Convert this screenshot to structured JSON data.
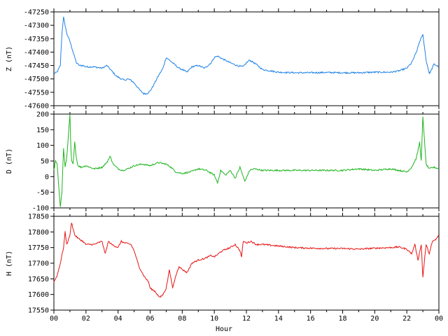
{
  "chart_data": [
    {
      "type": "line",
      "ylabel": "Z (nT)",
      "ylim": [
        -47600,
        -47250
      ],
      "yticks": [
        -47600,
        -47550,
        -47500,
        -47450,
        -47400,
        -47350,
        -47300,
        -47250
      ],
      "xlim": [
        0,
        24
      ],
      "color": "#1e82e6",
      "series": [
        {
          "x": [
            0,
            0.2,
            0.4,
            0.5,
            0.6,
            0.7,
            0.8,
            1.0,
            1.2,
            1.4,
            1.6,
            1.8,
            2.0,
            2.5,
            3.0,
            3.3,
            3.6,
            3.9,
            4.2,
            4.4,
            4.6,
            4.8,
            5.0,
            5.2,
            5.4,
            5.6,
            5.8,
            6.0,
            6.2,
            6.5,
            6.8,
            7.0,
            7.2,
            7.5,
            7.8,
            8.0,
            8.3,
            8.6,
            9.0,
            9.4,
            9.8,
            10.0,
            10.2,
            10.5,
            11.0,
            11.4,
            11.8,
            12.0,
            12.2,
            12.6,
            13.0,
            13.5,
            14.0,
            15,
            16,
            17,
            18,
            19,
            20,
            21,
            21.5,
            22.0,
            22.3,
            22.6,
            22.8,
            23.0,
            23.1,
            23.2,
            23.4,
            23.5,
            23.7,
            24
          ],
          "y": [
            -47480,
            -47475,
            -47450,
            -47330,
            -47270,
            -47300,
            -47330,
            -47360,
            -47400,
            -47440,
            -47450,
            -47450,
            -47455,
            -47455,
            -47460,
            -47450,
            -47470,
            -47490,
            -47500,
            -47505,
            -47500,
            -47505,
            -47515,
            -47530,
            -47545,
            -47555,
            -47555,
            -47545,
            -47525,
            -47490,
            -47460,
            -47420,
            -47430,
            -47445,
            -47460,
            -47465,
            -47475,
            -47455,
            -47450,
            -47460,
            -47440,
            -47420,
            -47415,
            -47425,
            -47440,
            -47450,
            -47455,
            -47440,
            -47430,
            -47445,
            -47465,
            -47470,
            -47475,
            -47477,
            -47477,
            -47476,
            -47477,
            -47477,
            -47475,
            -47475,
            -47470,
            -47460,
            -47440,
            -47400,
            -47360,
            -47335,
            -47380,
            -47430,
            -47480,
            -47470,
            -47445,
            -47455
          ]
        }
      ]
    },
    {
      "type": "line",
      "ylabel": "D (nT)",
      "ylim": [
        -100,
        200
      ],
      "yticks": [
        -100,
        -50,
        0,
        50,
        100,
        150,
        200
      ],
      "xlim": [
        0,
        24
      ],
      "color": "#1eb41e",
      "series": [
        {
          "x": [
            0,
            0.1,
            0.2,
            0.3,
            0.4,
            0.5,
            0.6,
            0.7,
            0.8,
            0.9,
            1.0,
            1.05,
            1.1,
            1.2,
            1.3,
            1.4,
            1.5,
            1.7,
            2.0,
            2.5,
            3.0,
            3.3,
            3.5,
            3.7,
            4.0,
            4.3,
            4.6,
            5.0,
            5.5,
            6.0,
            6.5,
            7.0,
            7.3,
            7.6,
            8.0,
            8.5,
            9.0,
            9.5,
            10.0,
            10.2,
            10.4,
            10.7,
            11.0,
            11.3,
            11.6,
            11.9,
            12.2,
            12.5,
            13,
            14,
            15,
            16,
            17,
            18,
            19,
            20,
            21,
            21.5,
            22.0,
            22.3,
            22.6,
            22.8,
            22.9,
            23.0,
            23.1,
            23.2,
            23.4,
            23.7,
            24
          ],
          "y": [
            20,
            50,
            40,
            -30,
            -95,
            -50,
            90,
            30,
            60,
            130,
            200,
            100,
            50,
            40,
            110,
            60,
            35,
            30,
            35,
            25,
            30,
            45,
            65,
            40,
            25,
            20,
            25,
            35,
            40,
            35,
            45,
            40,
            30,
            15,
            10,
            15,
            25,
            20,
            5,
            -20,
            20,
            5,
            20,
            -5,
            30,
            -15,
            20,
            25,
            20,
            20,
            20,
            20,
            20,
            20,
            25,
            20,
            25,
            20,
            15,
            30,
            60,
            110,
            50,
            190,
            120,
            40,
            25,
            30,
            25
          ]
        }
      ]
    },
    {
      "type": "line",
      "ylabel": "H (nT)",
      "ylim": [
        17550,
        17850
      ],
      "yticks": [
        17550,
        17600,
        17650,
        17700,
        17750,
        17800,
        17850
      ],
      "xlim": [
        0,
        24
      ],
      "xticks": [
        "00",
        "02",
        "04",
        "06",
        "08",
        "10",
        "12",
        "14",
        "16",
        "18",
        "20",
        "22",
        "00"
      ],
      "xlabel": "Hour",
      "color": "#e61414",
      "series": [
        {
          "x": [
            0,
            0.2,
            0.4,
            0.6,
            0.7,
            0.8,
            1.0,
            1.1,
            1.2,
            1.3,
            1.5,
            1.8,
            2.0,
            2.5,
            3.0,
            3.2,
            3.4,
            3.6,
            4.0,
            4.2,
            4.4,
            4.8,
            5.0,
            5.3,
            5.6,
            5.9,
            6.0,
            6.3,
            6.6,
            6.8,
            7.0,
            7.2,
            7.4,
            7.6,
            7.8,
            8.0,
            8.3,
            8.6,
            9.0,
            9.4,
            9.8,
            10.0,
            10.5,
            11.0,
            11.3,
            11.6,
            11.7,
            11.8,
            12.0,
            12.3,
            12.6,
            13,
            14,
            15,
            16,
            17,
            18,
            19,
            20,
            21,
            21.5,
            22.0,
            22.3,
            22.5,
            22.7,
            22.9,
            23.0,
            23.2,
            23.4,
            23.6,
            23.8,
            24
          ],
          "y": [
            17640,
            17660,
            17700,
            17750,
            17800,
            17760,
            17790,
            17830,
            17810,
            17790,
            17780,
            17770,
            17760,
            17760,
            17770,
            17730,
            17770,
            17760,
            17750,
            17770,
            17765,
            17760,
            17740,
            17690,
            17660,
            17640,
            17620,
            17610,
            17590,
            17600,
            17620,
            17680,
            17620,
            17660,
            17690,
            17680,
            17670,
            17700,
            17710,
            17715,
            17725,
            17720,
            17740,
            17750,
            17760,
            17740,
            17720,
            17770,
            17765,
            17770,
            17760,
            17760,
            17755,
            17750,
            17748,
            17747,
            17747,
            17745,
            17748,
            17750,
            17752,
            17745,
            17730,
            17760,
            17710,
            17760,
            17655,
            17760,
            17730,
            17770,
            17775,
            17790
          ]
        }
      ]
    }
  ]
}
